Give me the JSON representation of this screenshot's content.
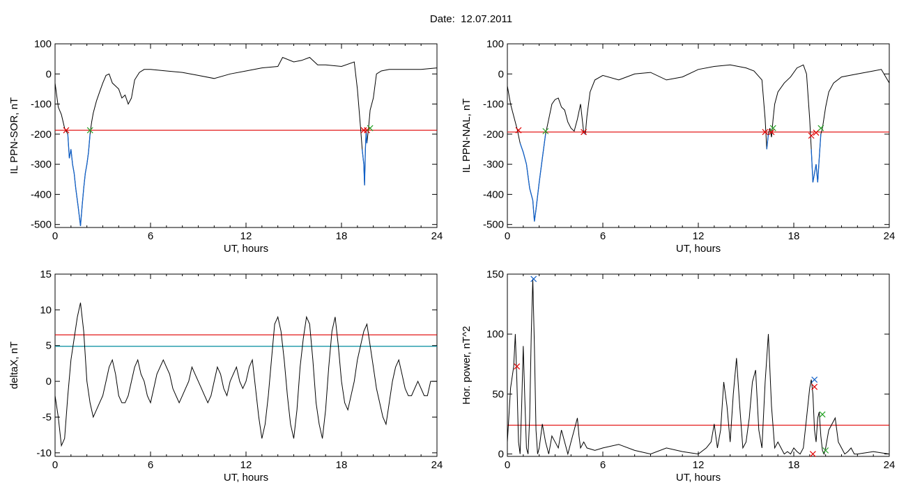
{
  "title": "Date:  12.07.2011",
  "colors": {
    "trace": "#000000",
    "threshold_red": "#e00000",
    "threshold_teal": "#008b9e",
    "below_blue": "#1060c8",
    "marker_red": "#e00000",
    "marker_green": "#22a022",
    "marker_blue": "#1060c8"
  },
  "chart_data": [
    {
      "type": "line",
      "xlabel": "UT, hours",
      "ylabel": "IL PPN-SOR, nT",
      "xlim": [
        0,
        24
      ],
      "ylim": [
        -510,
        100
      ],
      "xticks": [
        0,
        6,
        12,
        18,
        24
      ],
      "yticks": [
        100,
        0,
        -100,
        -200,
        -300,
        -400,
        -500
      ],
      "thresholds": [
        {
          "value": -187,
          "color": "red"
        }
      ],
      "series": [
        {
          "x": [
            0,
            0.2,
            0.4,
            0.6,
            0.8,
            0.9,
            1.0,
            1.1,
            1.2,
            1.3,
            1.45,
            1.6,
            1.7,
            1.8,
            1.9,
            2.0,
            2.1,
            2.2,
            2.3,
            2.4,
            2.6,
            2.8,
            3.0,
            3.2,
            3.4,
            3.6,
            3.8,
            4.0,
            4.2,
            4.4,
            4.6,
            4.8,
            5.0,
            5.3,
            5.6,
            6.0,
            7,
            8,
            9,
            10,
            11,
            12,
            13,
            14,
            14.3,
            15,
            15.5,
            16,
            16.5,
            17,
            18,
            18.8,
            19.0,
            19.2,
            19.3,
            19.4,
            19.45,
            19.5,
            19.55,
            19.6,
            19.7,
            19.8,
            20.0,
            20.2,
            20.5,
            21,
            22,
            23,
            24
          ],
          "y": [
            -30,
            -110,
            -135,
            -180,
            -200,
            -280,
            -250,
            -300,
            -330,
            -380,
            -440,
            -505,
            -440,
            -380,
            -330,
            -300,
            -260,
            -200,
            -160,
            -130,
            -90,
            -60,
            -30,
            -5,
            0,
            -30,
            -40,
            -50,
            -80,
            -70,
            -100,
            -80,
            -20,
            5,
            15,
            15,
            10,
            5,
            -5,
            -15,
            0,
            10,
            20,
            25,
            55,
            40,
            45,
            55,
            30,
            30,
            25,
            40,
            -50,
            -180,
            -250,
            -300,
            -370,
            -250,
            -190,
            -230,
            -180,
            -120,
            -80,
            0,
            10,
            15,
            15,
            15,
            20
          ]
        }
      ],
      "markers": [
        {
          "x": 0.7,
          "y": -187,
          "color": "red"
        },
        {
          "x": 2.2,
          "y": -187,
          "color": "green"
        },
        {
          "x": 19.4,
          "y": -187,
          "color": "red"
        },
        {
          "x": 19.6,
          "y": -187,
          "color": "red"
        },
        {
          "x": 19.8,
          "y": -180,
          "color": "green"
        }
      ]
    },
    {
      "type": "line",
      "xlabel": "UT, hours",
      "ylabel": "IL PPN-NAL, nT",
      "xlim": [
        0,
        24
      ],
      "ylim": [
        -510,
        100
      ],
      "xticks": [
        0,
        6,
        12,
        18,
        24
      ],
      "yticks": [
        100,
        0,
        -100,
        -200,
        -300,
        -400,
        -500
      ],
      "thresholds": [
        {
          "value": -193,
          "color": "red"
        }
      ],
      "series": [
        {
          "x": [
            0,
            0.2,
            0.4,
            0.6,
            0.8,
            1.0,
            1.2,
            1.4,
            1.6,
            1.7,
            1.8,
            2.0,
            2.2,
            2.4,
            2.6,
            2.8,
            3.0,
            3.2,
            3.4,
            3.6,
            3.8,
            4.0,
            4.2,
            4.4,
            4.6,
            4.8,
            4.9,
            5.0,
            5.2,
            5.5,
            6.0,
            7,
            8,
            9,
            10,
            11,
            12,
            13,
            14,
            15,
            15.5,
            16.0,
            16.2,
            16.3,
            16.4,
            16.5,
            16.6,
            16.7,
            16.8,
            17.0,
            17.4,
            17.8,
            18.2,
            18.6,
            18.8,
            19.0,
            19.1,
            19.2,
            19.3,
            19.4,
            19.5,
            19.6,
            19.7,
            19.8,
            20.0,
            20.2,
            20.5,
            21,
            22,
            23,
            23.5,
            24
          ],
          "y": [
            -40,
            -100,
            -140,
            -180,
            -230,
            -260,
            -300,
            -380,
            -420,
            -490,
            -450,
            -360,
            -280,
            -200,
            -150,
            -100,
            -85,
            -80,
            -110,
            -120,
            -160,
            -180,
            -190,
            -150,
            -100,
            -195,
            -200,
            -140,
            -60,
            -20,
            -5,
            -20,
            0,
            5,
            -20,
            -10,
            15,
            25,
            30,
            20,
            10,
            -20,
            -150,
            -250,
            -200,
            -180,
            -210,
            -150,
            -100,
            -60,
            -30,
            -10,
            20,
            30,
            0,
            -150,
            -250,
            -360,
            -330,
            -300,
            -360,
            -280,
            -200,
            -180,
            -110,
            -60,
            -30,
            -10,
            0,
            10,
            15,
            -30
          ]
        }
      ],
      "markers": [
        {
          "x": 0.7,
          "y": -187,
          "color": "red"
        },
        {
          "x": 2.4,
          "y": -190,
          "color": "green"
        },
        {
          "x": 4.8,
          "y": -193,
          "color": "red"
        },
        {
          "x": 16.2,
          "y": -193,
          "color": "red"
        },
        {
          "x": 16.6,
          "y": -193,
          "color": "red"
        },
        {
          "x": 16.7,
          "y": -180,
          "color": "green"
        },
        {
          "x": 19.1,
          "y": -205,
          "color": "red"
        },
        {
          "x": 19.4,
          "y": -195,
          "color": "red"
        },
        {
          "x": 19.7,
          "y": -180,
          "color": "green"
        }
      ]
    },
    {
      "type": "line",
      "xlabel": "UT, hours",
      "ylabel": "deltaX, nT",
      "xlim": [
        0,
        24
      ],
      "ylim": [
        -10.5,
        15
      ],
      "xticks": [
        0,
        6,
        12,
        18,
        24
      ],
      "yticks": [
        15,
        10,
        5,
        0,
        -5,
        -10
      ],
      "thresholds": [
        {
          "value": 6.5,
          "color": "red"
        },
        {
          "value": 4.9,
          "color": "teal"
        }
      ],
      "series": [
        {
          "x": [
            0,
            0.2,
            0.4,
            0.6,
            0.8,
            1.0,
            1.2,
            1.4,
            1.6,
            1.8,
            2.0,
            2.2,
            2.4,
            2.6,
            2.8,
            3.0,
            3.2,
            3.4,
            3.6,
            3.8,
            4.0,
            4.2,
            4.4,
            4.6,
            4.8,
            5.0,
            5.2,
            5.4,
            5.6,
            5.8,
            6.0,
            6.2,
            6.4,
            6.6,
            6.8,
            7.0,
            7.2,
            7.4,
            7.6,
            7.8,
            8.0,
            8.2,
            8.4,
            8.6,
            8.8,
            9.0,
            9.2,
            9.4,
            9.6,
            9.8,
            10.0,
            10.2,
            10.4,
            10.6,
            10.8,
            11.0,
            11.2,
            11.4,
            11.6,
            11.8,
            12.0,
            12.2,
            12.4,
            12.6,
            12.8,
            13.0,
            13.2,
            13.4,
            13.6,
            13.8,
            14.0,
            14.2,
            14.4,
            14.6,
            14.8,
            15.0,
            15.2,
            15.4,
            15.6,
            15.8,
            16.0,
            16.2,
            16.4,
            16.6,
            16.8,
            17.0,
            17.2,
            17.4,
            17.6,
            17.8,
            18.0,
            18.2,
            18.4,
            18.6,
            18.8,
            19.0,
            19.2,
            19.4,
            19.6,
            19.8,
            20.0,
            20.2,
            20.4,
            20.6,
            20.8,
            21.0,
            21.2,
            21.4,
            21.6,
            21.8,
            22.0,
            22.2,
            22.4,
            22.6,
            22.8,
            23.0,
            23.2,
            23.4,
            23.6,
            23.8,
            24.0
          ],
          "y": [
            -2,
            -5,
            -9,
            -8,
            -2,
            3,
            6,
            9,
            11,
            7,
            0,
            -3,
            -5,
            -4,
            -3,
            -2,
            0,
            2,
            3,
            1,
            -2,
            -3,
            -3,
            -2,
            0,
            2,
            3,
            1,
            0,
            -2,
            -3,
            -1,
            1,
            2,
            3,
            2,
            1,
            -1,
            -2,
            -3,
            -2,
            -1,
            0,
            2,
            1,
            0,
            -1,
            -2,
            -3,
            -2,
            0,
            2,
            1,
            -1,
            -2,
            0,
            1,
            2,
            0,
            -1,
            0,
            2,
            3,
            -1,
            -5,
            -8,
            -6,
            -2,
            3,
            8,
            9,
            7,
            3,
            -2,
            -6,
            -8,
            -4,
            2,
            6,
            9,
            8,
            3,
            -3,
            -6,
            -8,
            -4,
            2,
            7,
            9,
            5,
            0,
            -3,
            -4,
            -2,
            0,
            3,
            5,
            7,
            8,
            5,
            2,
            -1,
            -3,
            -5,
            -6,
            -3,
            0,
            2,
            3,
            1,
            -1,
            -2,
            -2,
            -1,
            0,
            -1,
            -2,
            -2,
            0,
            0,
            0
          ]
        }
      ],
      "markers": []
    },
    {
      "type": "line",
      "xlabel": "UT, hours",
      "ylabel": "Hor. power, nT^2",
      "xlim": [
        0,
        24
      ],
      "ylim": [
        -2,
        150
      ],
      "xticks": [
        0,
        6,
        12,
        18,
        24
      ],
      "yticks": [
        150,
        100,
        50,
        0
      ],
      "thresholds": [
        {
          "value": 24,
          "color": "red"
        }
      ],
      "series": [
        {
          "x": [
            0,
            0.2,
            0.4,
            0.5,
            0.6,
            0.7,
            0.8,
            0.9,
            1.0,
            1.1,
            1.2,
            1.3,
            1.4,
            1.5,
            1.6,
            1.7,
            1.8,
            1.9,
            2.0,
            2.2,
            2.4,
            2.6,
            2.8,
            3.0,
            3.2,
            3.4,
            3.6,
            3.8,
            4.0,
            4.2,
            4.4,
            4.5,
            4.6,
            4.8,
            5.0,
            5.5,
            6,
            7,
            8,
            9,
            10,
            11,
            12,
            12.5,
            12.8,
            13.0,
            13.2,
            13.4,
            13.6,
            13.8,
            14.0,
            14.2,
            14.4,
            14.6,
            14.8,
            15.0,
            15.2,
            15.4,
            15.6,
            15.8,
            16.0,
            16.2,
            16.4,
            16.6,
            16.8,
            17.0,
            17.2,
            17.4,
            17.6,
            17.8,
            18.0,
            18.2,
            18.4,
            18.6,
            18.8,
            19.0,
            19.1,
            19.2,
            19.3,
            19.4,
            19.5,
            19.6,
            19.7,
            19.8,
            19.9,
            20.0,
            20.2,
            20.4,
            20.6,
            20.8,
            21.0,
            21.2,
            21.4,
            21.6,
            21.8,
            22,
            23,
            24
          ],
          "y": [
            10,
            55,
            73,
            100,
            60,
            10,
            0,
            40,
            90,
            45,
            5,
            0,
            30,
            100,
            146,
            90,
            20,
            0,
            5,
            25,
            10,
            0,
            15,
            10,
            5,
            20,
            10,
            0,
            10,
            20,
            30,
            15,
            5,
            10,
            5,
            3,
            5,
            8,
            3,
            0,
            5,
            2,
            0,
            5,
            10,
            25,
            5,
            20,
            60,
            40,
            10,
            50,
            80,
            40,
            5,
            10,
            30,
            60,
            70,
            20,
            5,
            60,
            100,
            40,
            5,
            10,
            5,
            0,
            2,
            0,
            5,
            2,
            0,
            5,
            30,
            55,
            62,
            50,
            20,
            10,
            30,
            35,
            15,
            3,
            0,
            5,
            20,
            25,
            30,
            10,
            5,
            0,
            2,
            5,
            0,
            0,
            2,
            0
          ]
        }
      ],
      "markers": [
        {
          "x": 0.6,
          "y": 73,
          "color": "red"
        },
        {
          "x": 1.65,
          "y": 146,
          "color": "blue"
        },
        {
          "x": 19.3,
          "y": 62,
          "color": "blue"
        },
        {
          "x": 19.3,
          "y": 56,
          "color": "red"
        },
        {
          "x": 19.2,
          "y": 0,
          "color": "red"
        },
        {
          "x": 19.8,
          "y": 33,
          "color": "green"
        },
        {
          "x": 20.0,
          "y": 3,
          "color": "green"
        }
      ]
    }
  ]
}
